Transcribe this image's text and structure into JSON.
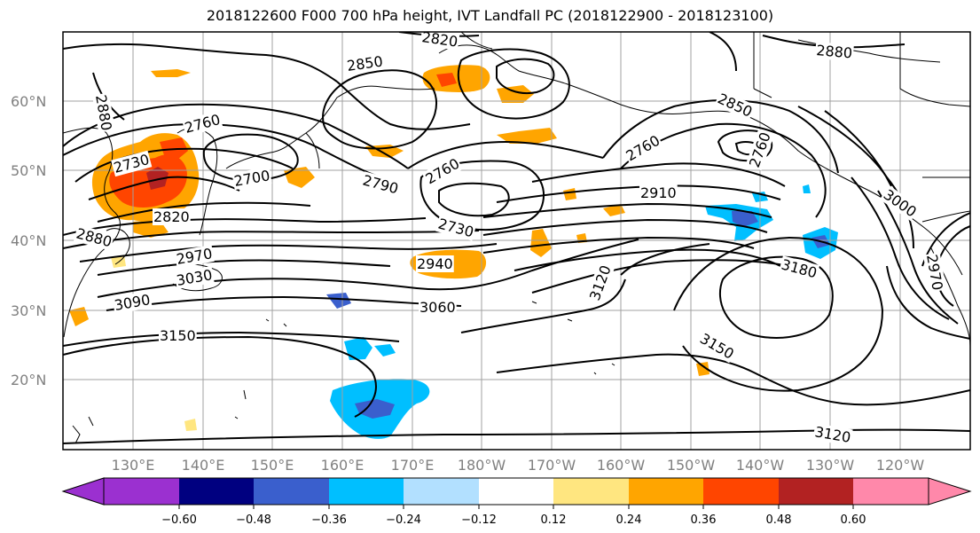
{
  "title": "2018122600 F000 700 hPa height, IVT Landfall PC (2018122900 - 2018123100)",
  "map": {
    "lat_labels": [
      "60°N",
      "50°N",
      "40°N",
      "30°N",
      "20°N"
    ],
    "lon_labels": [
      "130°E",
      "140°E",
      "150°E",
      "160°E",
      "170°E",
      "180°W",
      "170°W",
      "160°W",
      "150°W",
      "140°W",
      "130°W",
      "120°W"
    ],
    "contour_labels": [
      "2880",
      "2850",
      "2820",
      "2760",
      "2730",
      "2700",
      "2790",
      "2760",
      "2730",
      "2820",
      "2880",
      "2940",
      "2970",
      "3030",
      "3090",
      "3060",
      "3150",
      "3120",
      "2910",
      "2760",
      "2850",
      "2760",
      "2880",
      "3000",
      "3180",
      "3150",
      "2970",
      "3120"
    ],
    "colors": {
      "negative": [
        "#9b30d0",
        "#000080",
        "#3a5fcd",
        "#00bfff",
        "#b2e0ff"
      ],
      "neutral": "#ffffff",
      "positive": [
        "#ffe680",
        "#ffa500",
        "#ff4500",
        "#b22222",
        "#ff88aa"
      ],
      "gridline": "#a0a0a0",
      "contour": "#000000"
    }
  },
  "colorbar": {
    "ticks": [
      "−0.60",
      "−0.48",
      "−0.36",
      "−0.24",
      "−0.12",
      "0.12",
      "0.24",
      "0.36",
      "0.48",
      "0.60"
    ]
  }
}
